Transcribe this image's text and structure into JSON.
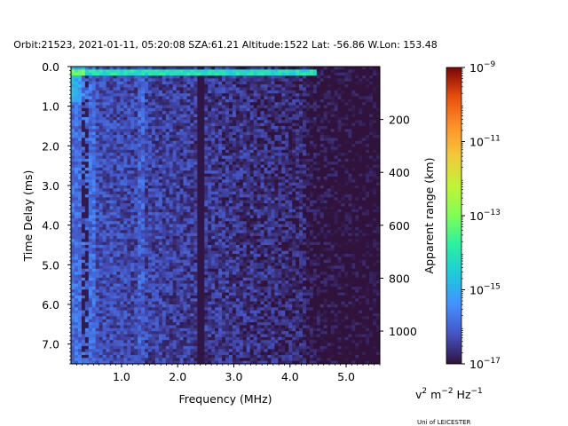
{
  "chart_data": {
    "type": "heatmap",
    "title": "Orbit:21523, 2021-01-11, 05:20:08 SZA:61.21 Altitude:1522 Lat: -56.86 W.Lon: 153.48",
    "xlabel": "Frequency (MHz)",
    "ylabel": "Time Delay (ms)",
    "y2label": "Apparent range (km)",
    "xlim": [
      0.1,
      5.6
    ],
    "ylim": [
      7.5,
      0.0
    ],
    "y2lim": [
      1124,
      0
    ],
    "x_ticks": [
      1.0,
      2.0,
      3.0,
      4.0,
      5.0
    ],
    "x_tick_labels": [
      "1.0",
      "2.0",
      "3.0",
      "4.0",
      "5.0"
    ],
    "y_ticks": [
      0.0,
      1.0,
      2.0,
      3.0,
      4.0,
      5.0,
      6.0,
      7.0
    ],
    "y_tick_labels": [
      "0.0",
      "1.0",
      "2.0",
      "3.0",
      "4.0",
      "5.0",
      "6.0",
      "7.0"
    ],
    "y2_ticks": [
      200,
      400,
      600,
      800,
      1000
    ],
    "y2_tick_labels": [
      "200",
      "400",
      "600",
      "800",
      "1000"
    ],
    "colorbar": {
      "scale": "log",
      "colormap": "turbo",
      "range": [
        1e-17,
        1e-09
      ],
      "ticks": [
        -17,
        -15,
        -13,
        -11,
        -9
      ],
      "tick_bases": [
        "10",
        "10",
        "10",
        "10",
        "10"
      ],
      "tick_exponents": [
        "−17",
        "−15",
        "−13",
        "−11",
        "−9"
      ],
      "unit_label": {
        "v": "v",
        "v_sup": "2",
        "m": " m",
        "m_sup": "−2",
        "hz": " Hz",
        "hz_sup": "−1"
      }
    },
    "grid": false,
    "heatmap_rows": 100,
    "heatmap_cols": 88,
    "dark_vertical_line_mhz": 2.4,
    "bright_vertical_line_mhz": 1.35,
    "strong_echo_delay_ms": 0.15
  },
  "footer": {
    "credit": "Uni of LEICESTER"
  }
}
